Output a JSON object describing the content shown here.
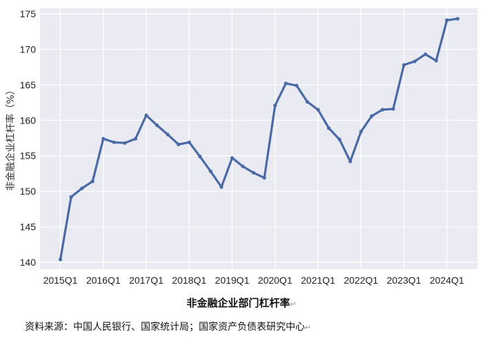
{
  "chart_data": {
    "type": "line",
    "title": "",
    "xlabel": "",
    "ylabel": "非金融企业杠杆率（%）",
    "x": [
      "2015Q1",
      "2015Q2",
      "2015Q3",
      "2015Q4",
      "2016Q1",
      "2016Q2",
      "2016Q3",
      "2016Q4",
      "2017Q1",
      "2017Q2",
      "2017Q3",
      "2017Q4",
      "2018Q1",
      "2018Q2",
      "2018Q3",
      "2018Q4",
      "2019Q1",
      "2019Q2",
      "2019Q3",
      "2019Q4",
      "2020Q1",
      "2020Q2",
      "2020Q3",
      "2020Q4",
      "2021Q1",
      "2021Q2",
      "2021Q3",
      "2021Q4",
      "2022Q1",
      "2022Q2",
      "2022Q3",
      "2022Q4",
      "2023Q1",
      "2023Q2",
      "2023Q3",
      "2023Q4",
      "2024Q1",
      "2024Q2"
    ],
    "x_tick_labels": [
      "2015Q1",
      "2016Q1",
      "2017Q1",
      "2018Q1",
      "2019Q1",
      "2020Q1",
      "2021Q1",
      "2022Q1",
      "2023Q1",
      "2024Q1"
    ],
    "series": [
      {
        "values": [
          140.4,
          149.2,
          150.4,
          151.4,
          157.4,
          156.9,
          156.8,
          157.4,
          160.7,
          159.3,
          158.0,
          156.6,
          156.9,
          154.9,
          152.8,
          150.6,
          154.7,
          153.5,
          152.6,
          151.9,
          162.1,
          165.2,
          164.9,
          162.6,
          161.5,
          158.9,
          157.3,
          154.2,
          158.4,
          160.6,
          161.5,
          161.6,
          167.8,
          168.3,
          169.3,
          168.4,
          174.1,
          174.3
        ],
        "color": "#4a6aa5"
      }
    ],
    "ylim": [
      140,
      175
    ],
    "yticks": [
      140,
      145,
      150,
      155,
      160,
      165,
      170,
      175
    ],
    "grid": true,
    "plot_background": "#eaeaf2",
    "grid_color": "#ffffff"
  },
  "caption": {
    "title": "非金融企业部门杠杆率",
    "source": "资料来源：中国人民银行、国家统计局；国家资产负债表研究中心"
  },
  "colors": {
    "line": "#4a6aa5"
  }
}
